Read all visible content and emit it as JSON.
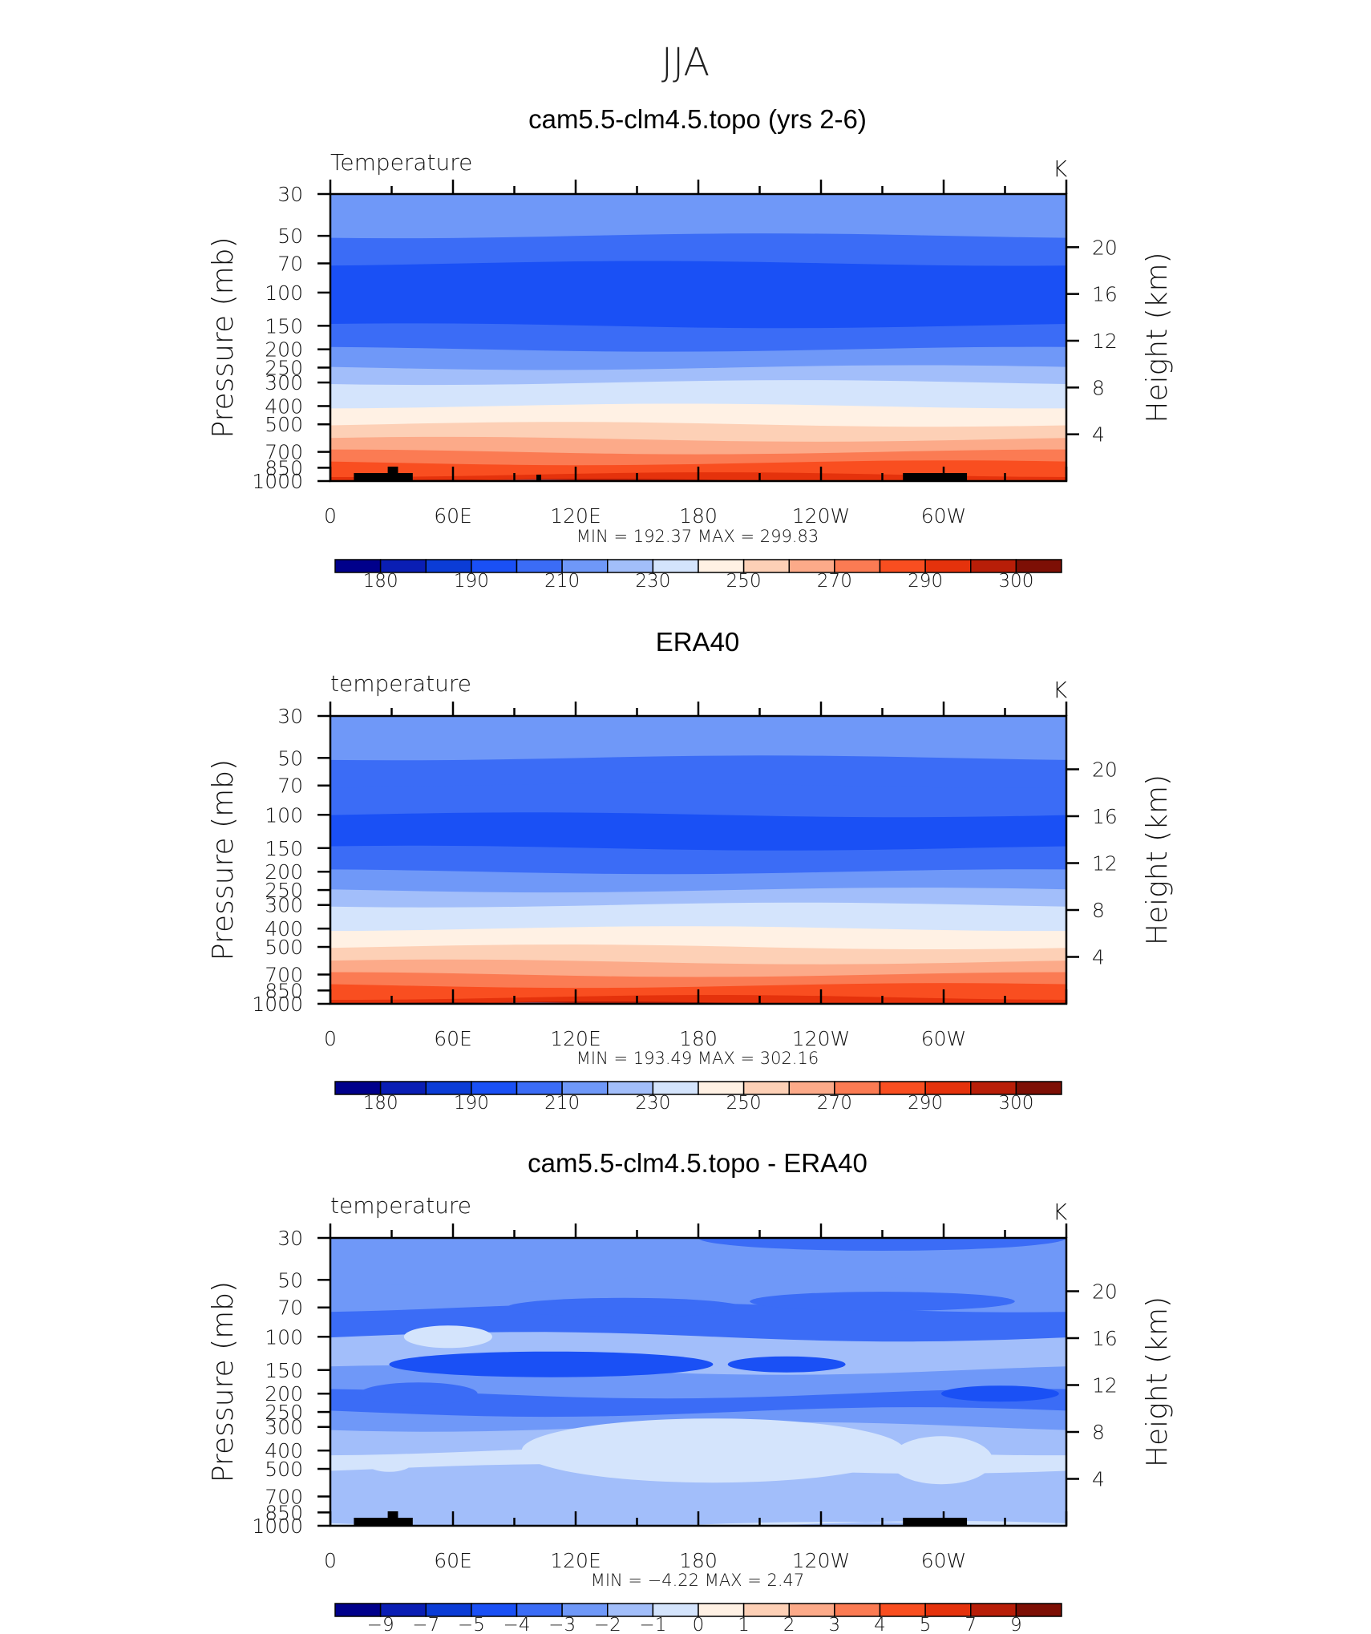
{
  "page": {
    "title": "JJA"
  },
  "colors": {
    "abs_palette": [
      "#00008b",
      "#0a1eb4",
      "#0b3cd6",
      "#1a50f5",
      "#3b6cf6",
      "#6f98f8",
      "#a2befa",
      "#d4e4fc",
      "#fff1e4",
      "#fdd0b6",
      "#fcaa89",
      "#fb7b53",
      "#f94e20",
      "#e5320c",
      "#b81e08",
      "#7d0f05"
    ],
    "diff_palette": [
      "#00008b",
      "#0a1eb4",
      "#0b3cd6",
      "#1a50f5",
      "#3b6cf6",
      "#6f98f8",
      "#a2befa",
      "#d4e4fc",
      "#fff1e4",
      "#fdd0b6",
      "#fcaa89",
      "#fb7b53",
      "#f94e20",
      "#e5320c",
      "#b81e08",
      "#7d0f05"
    ],
    "topo": "#000000"
  },
  "chart_data": [
    {
      "type": "heatmap",
      "title": "cam5.5-clm4.5.topo (yrs 2-6)",
      "left_label": "Temperature",
      "units": "K",
      "ylabel": "Pressure  (mb)",
      "y2label": "Height  (km)",
      "x_ticks": [
        "0",
        "60E",
        "120E",
        "180",
        "120W",
        "60W"
      ],
      "y_ticks": [
        "30",
        "50",
        "70",
        "100",
        "150",
        "200",
        "250",
        "300",
        "400",
        "500",
        "700",
        "850",
        "1000"
      ],
      "y2_ticks": [
        "20",
        "16",
        "12",
        "8",
        "4"
      ],
      "minmax_text": "MIN  =  192.37    MAX  =  299.83",
      "min": 192.37,
      "max": 299.83,
      "colorbar_labels": [
        "180",
        "190",
        "210",
        "230",
        "250",
        "270",
        "290",
        "300"
      ],
      "profile_pressure_mb": [
        30,
        50,
        70,
        100,
        150,
        200,
        250,
        300,
        400,
        500,
        600,
        700,
        800,
        850,
        925,
        1000
      ],
      "profile_temp_class": [
        5,
        4,
        3,
        3,
        4,
        5,
        6,
        7,
        8,
        9,
        10,
        11,
        12,
        12,
        13,
        14
      ],
      "topography": true
    },
    {
      "type": "heatmap",
      "title": "ERA40",
      "left_label": "temperature",
      "units": "K",
      "ylabel": "Pressure  (mb)",
      "y2label": "Height  (km)",
      "x_ticks": [
        "0",
        "60E",
        "120E",
        "180",
        "120W",
        "60W"
      ],
      "y_ticks": [
        "30",
        "50",
        "70",
        "100",
        "150",
        "200",
        "250",
        "300",
        "400",
        "500",
        "700",
        "850",
        "1000"
      ],
      "y2_ticks": [
        "20",
        "16",
        "12",
        "8",
        "4"
      ],
      "minmax_text": "MIN  =  193.49    MAX  =  302.16",
      "min": 193.49,
      "max": 302.16,
      "colorbar_labels": [
        "180",
        "190",
        "210",
        "230",
        "250",
        "270",
        "290",
        "300"
      ],
      "profile_pressure_mb": [
        30,
        50,
        70,
        100,
        150,
        200,
        250,
        300,
        400,
        500,
        600,
        700,
        800,
        850,
        925,
        1000
      ],
      "profile_temp_class": [
        5,
        4,
        4,
        3,
        4,
        5,
        6,
        7,
        8,
        9,
        10,
        11,
        12,
        12,
        13,
        14
      ],
      "topography": false
    },
    {
      "type": "heatmap",
      "title": "cam5.5-clm4.5.topo - ERA40",
      "left_label": "temperature",
      "units": "K",
      "ylabel": "Pressure  (mb)",
      "y2label": "Height  (km)",
      "x_ticks": [
        "0",
        "60E",
        "120E",
        "180",
        "120W",
        "60W"
      ],
      "y_ticks": [
        "30",
        "50",
        "70",
        "100",
        "150",
        "200",
        "250",
        "300",
        "400",
        "500",
        "700",
        "850",
        "1000"
      ],
      "y2_ticks": [
        "20",
        "16",
        "12",
        "8",
        "4"
      ],
      "minmax_text": "MIN  =    −4.22    MAX  =     2.47",
      "min": -4.22,
      "max": 2.47,
      "colorbar_labels": [
        "−9",
        "−7",
        "−5",
        "−4",
        "−3",
        "−2",
        "−1",
        "0",
        "1",
        "2",
        "3",
        "4",
        "5",
        "7",
        "9"
      ],
      "diff_levels": [
        -9,
        -7,
        -5,
        -4,
        -3,
        -2,
        -1,
        0,
        1,
        2,
        3,
        4,
        5,
        7,
        9
      ],
      "profile_pressure_mb": [
        30,
        50,
        70,
        100,
        150,
        200,
        250,
        300,
        400,
        500,
        700,
        850,
        1000
      ],
      "profile_diff_class": [
        5,
        5,
        4,
        6,
        5,
        4,
        5,
        6,
        7,
        6,
        6,
        6,
        7
      ],
      "topography": true
    }
  ]
}
